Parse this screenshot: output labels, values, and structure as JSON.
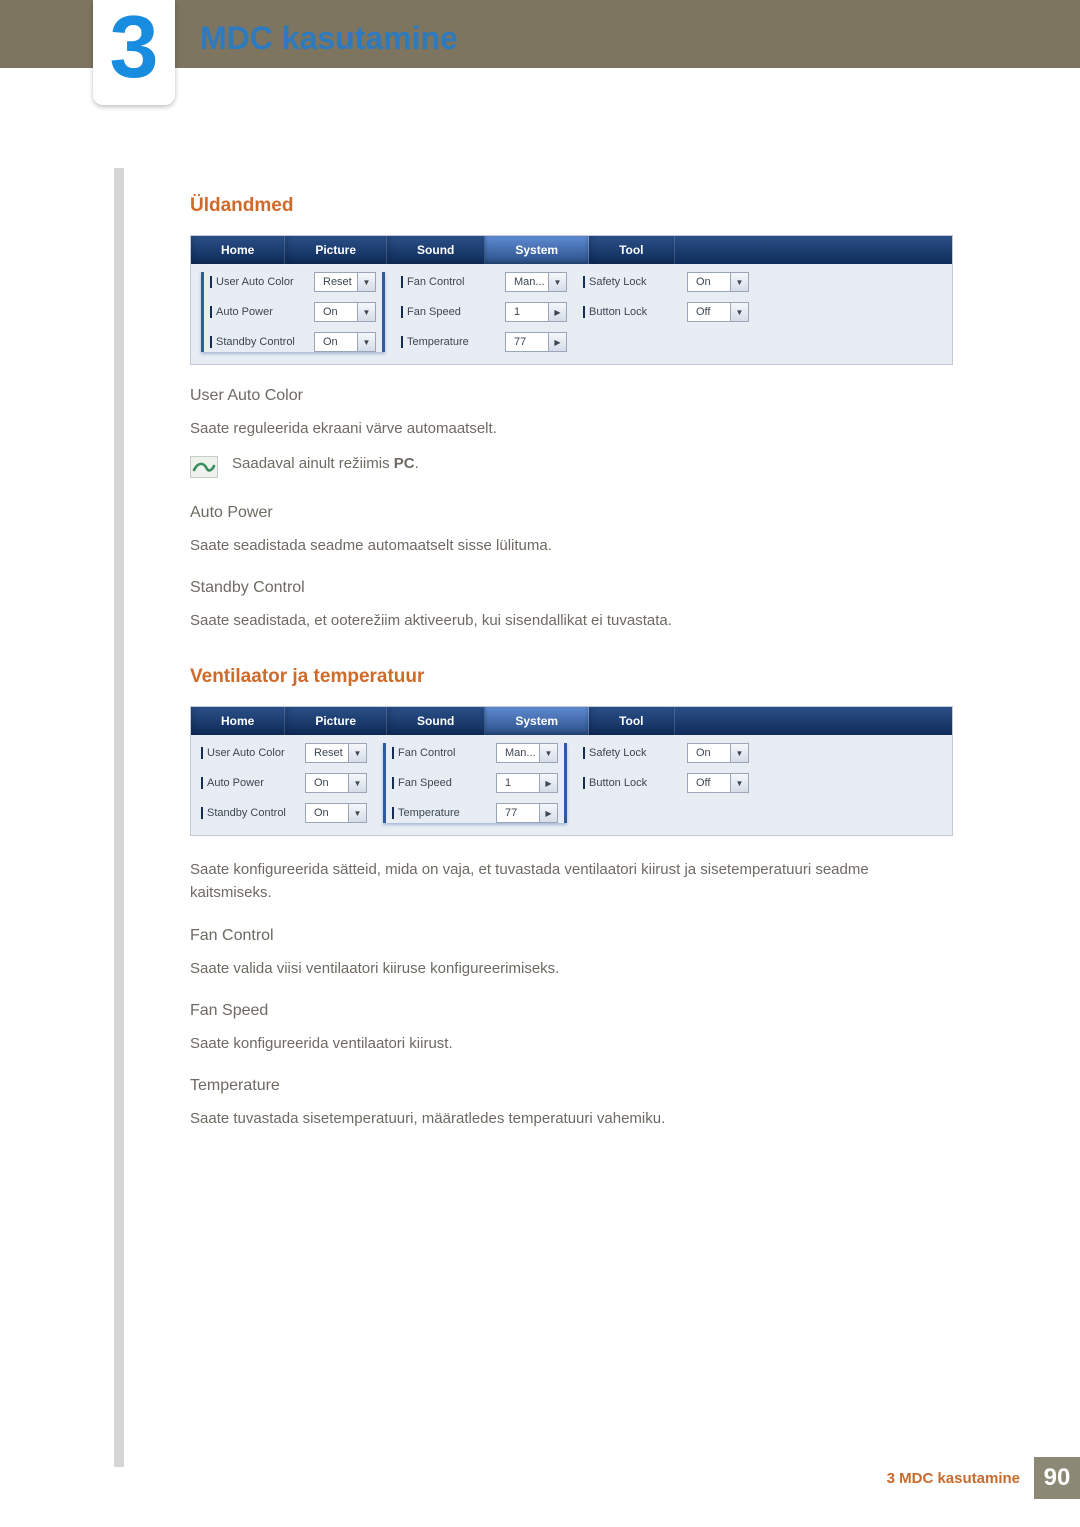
{
  "chapter": {
    "number": "3",
    "title": "MDC kasutamine"
  },
  "section1": {
    "heading": "Üldandmed",
    "sub1": {
      "title": "User Auto Color",
      "text": "Saate reguleerida ekraani värve automaatselt."
    },
    "note": {
      "prefix": "Saadaval ainult režiimis ",
      "bold": "PC",
      "suffix": "."
    },
    "sub2": {
      "title": "Auto Power",
      "text": "Saate seadistada seadme automaatselt sisse lülituma."
    },
    "sub3": {
      "title": "Standby Control",
      "text": "Saate seadistada, et ooterežiim aktiveerub, kui sisendallikat ei tuvastata."
    }
  },
  "section2": {
    "heading": "Ventilaator ja temperatuur",
    "intro": "Saate konfigureerida sätteid, mida on vaja, et tuvastada ventilaatori kiirust ja sisetemperatuuri seadme kaitsmiseks.",
    "sub1": {
      "title": "Fan Control",
      "text": "Saate valida viisi ventilaatori kiiruse konfigureerimiseks."
    },
    "sub2": {
      "title": "Fan Speed",
      "text": "Saate konfigureerida ventilaatori kiirust."
    },
    "sub3": {
      "title": "Temperature",
      "text": "Saate tuvastada sisetemperatuuri, määratledes temperatuuri vahemiku."
    }
  },
  "panel": {
    "tabs": [
      "Home",
      "Picture",
      "Sound",
      "System",
      "Tool"
    ],
    "active_tab_index": 3,
    "col1": [
      {
        "label": "User Auto Color",
        "value": "Reset",
        "kind": "dropdown"
      },
      {
        "label": "Auto Power",
        "value": "On",
        "kind": "dropdown"
      },
      {
        "label": "Standby Control",
        "value": "On",
        "kind": "dropdown"
      }
    ],
    "col2": [
      {
        "label": "Fan Control",
        "value": "Man...",
        "kind": "dropdown"
      },
      {
        "label": "Fan Speed",
        "value": "1",
        "kind": "spinner"
      },
      {
        "label": "Temperature",
        "value": "77",
        "kind": "spinner"
      }
    ],
    "col3": [
      {
        "label": "Safety Lock",
        "value": "On",
        "kind": "dropdown"
      },
      {
        "label": "Button Lock",
        "value": "Off",
        "kind": "dropdown"
      }
    ]
  },
  "panel1_highlight_col": 0,
  "panel2_highlight_col": 1,
  "footer": {
    "text": "3 MDC kasutamine",
    "page": "90"
  },
  "colors": {
    "brand_blue": "#2d7abf",
    "accent_orange": "#d06a28",
    "top_band": "#7d7560",
    "side_line": "#d6d6d6",
    "tab_bg_top": "#2a4f87",
    "tab_bg_bottom": "#0f2c5a",
    "panel_bg": "#e8edf4",
    "page_num_bg": "#8b8876"
  }
}
